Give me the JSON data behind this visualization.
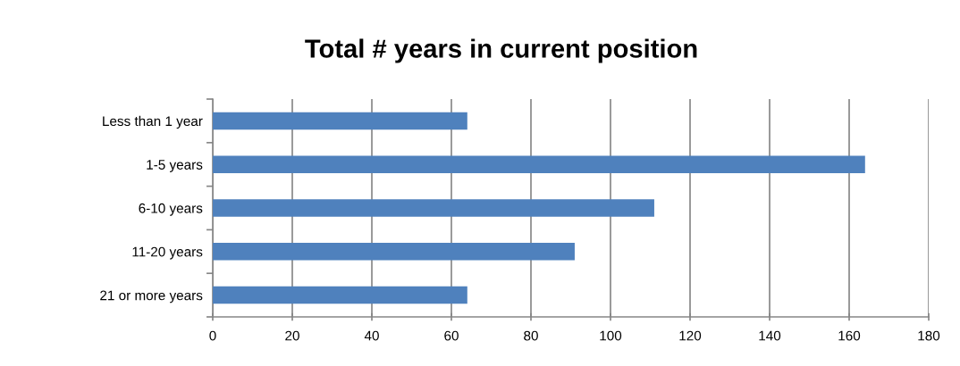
{
  "chart_data": {
    "type": "bar",
    "orientation": "horizontal",
    "title": "Total # years in current position",
    "categories": [
      "Less than 1 year",
      "1-5 years",
      "6-10 years",
      "11-20 years",
      "21 or more years"
    ],
    "values": [
      64,
      164,
      111,
      91,
      64
    ],
    "color": "#4f81bd",
    "xlim": [
      0,
      180
    ],
    "xticks": [
      0,
      20,
      40,
      60,
      80,
      100,
      120,
      140,
      160,
      180
    ],
    "grid": "x"
  }
}
